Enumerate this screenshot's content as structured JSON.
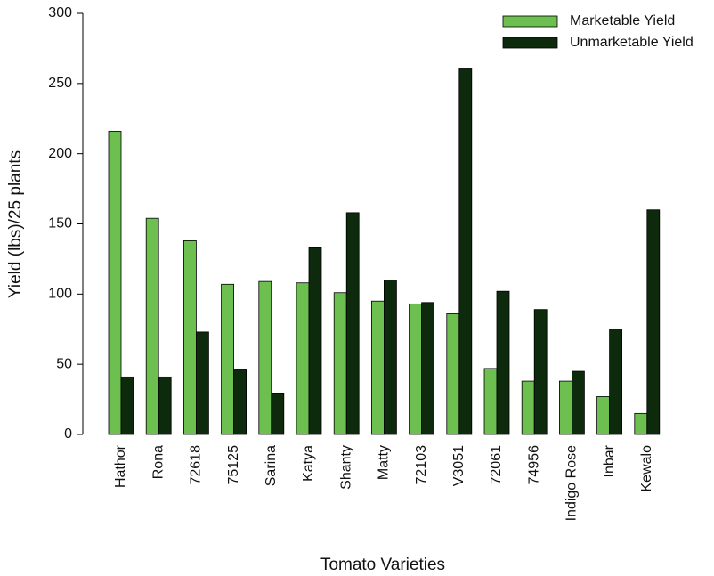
{
  "chart_data": {
    "type": "bar",
    "x_label": "Tomato Varieties",
    "y_label": "Yield (lbs)/25 plants",
    "categories": [
      "Hathor",
      "Rona",
      "72618",
      "75125",
      "Sarina",
      "Katya",
      "Shanty",
      "Matty",
      "72103",
      "V3051",
      "72061",
      "74956",
      "Indigo Rose",
      "Inbar",
      "Kewalo"
    ],
    "series": [
      {
        "name": "Marketable Yield",
        "color": "#6dbf4f",
        "values": [
          216,
          154,
          138,
          107,
          109,
          108,
          101,
          95,
          93,
          86,
          47,
          38,
          38,
          27,
          15
        ]
      },
      {
        "name": "Unmarketable Yield",
        "color": "#0d2a0d",
        "values": [
          41,
          41,
          73,
          46,
          29,
          133,
          158,
          110,
          94,
          261,
          102,
          89,
          45,
          75,
          160
        ]
      }
    ],
    "ylim": [
      0,
      300
    ],
    "yticks": [
      0,
      50,
      100,
      150,
      200,
      250,
      300
    ],
    "legend": "upper right"
  }
}
